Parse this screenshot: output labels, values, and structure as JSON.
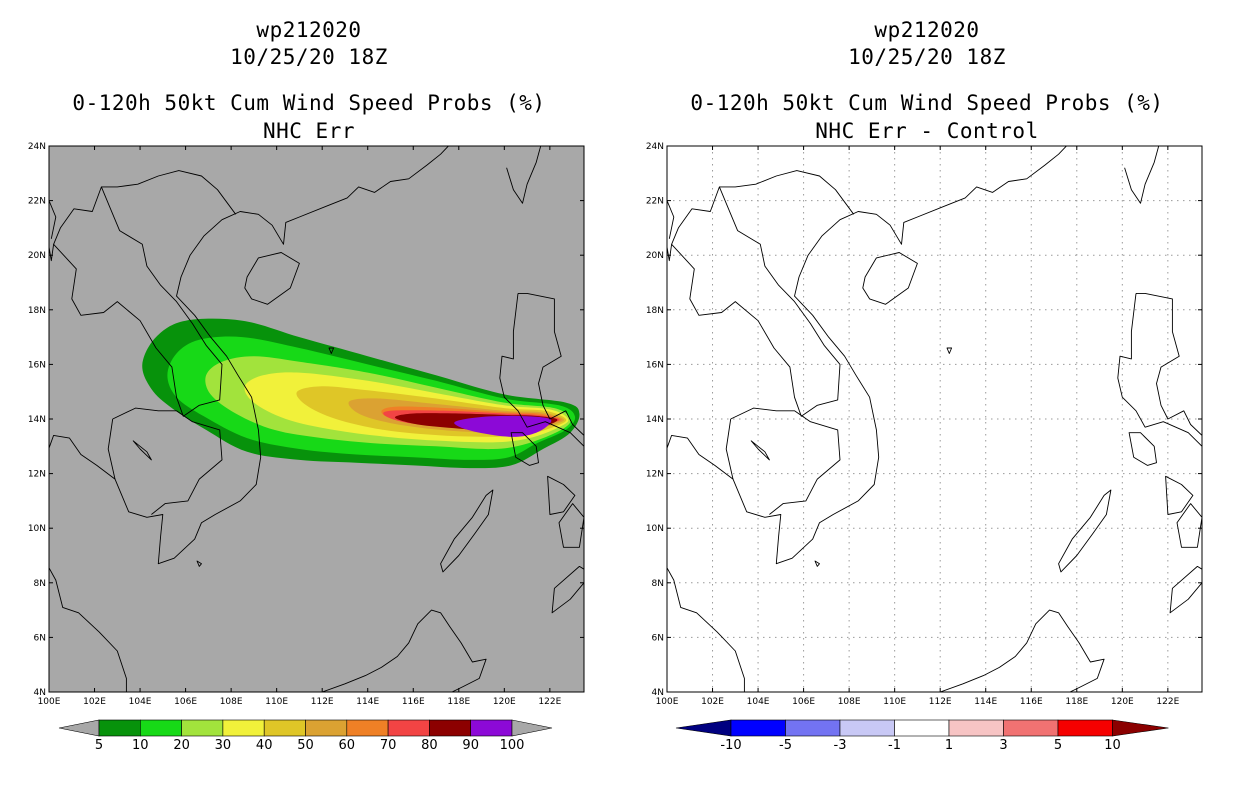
{
  "panels": [
    {
      "storm_id": "wp212020",
      "datetime": "10/25/20 18Z",
      "product": "0-120h 50kt Cum Wind Speed Probs (%)",
      "subtitle": "NHC Err",
      "background": "#a8a8a8",
      "colorbar": {
        "labels": [
          "5",
          "10",
          "20",
          "30",
          "40",
          "50",
          "60",
          "70",
          "80",
          "90",
          "100"
        ],
        "colors": [
          "#a8a8a8",
          "#07920b",
          "#17d917",
          "#a2e33c",
          "#f1f13a",
          "#dfc627",
          "#dba232",
          "#ef8026",
          "#f24444",
          "#8c0000",
          "#8c09d7",
          "#a8a8a8"
        ]
      },
      "probability_swath": {
        "units": "%",
        "levels": [
          5,
          10,
          20,
          30,
          40,
          50,
          60,
          70,
          80,
          90
        ]
      }
    },
    {
      "storm_id": "wp212020",
      "datetime": "10/25/20 18Z",
      "product": "0-120h 50kt Cum Wind Speed Probs (%)",
      "subtitle": "NHC Err - Control",
      "background": "#ffffff",
      "colorbar": {
        "labels": [
          "-10",
          "-5",
          "-3",
          "-1",
          "1",
          "3",
          "5",
          "10"
        ],
        "colors": [
          "#000080",
          "#0000ff",
          "#7373f2",
          "#c8c8f5",
          "#ffffff",
          "#f7c4c4",
          "#f17272",
          "#f50000",
          "#8b0000"
        ]
      }
    }
  ],
  "axes": {
    "lon_labels": [
      "100E",
      "102E",
      "104E",
      "106E",
      "108E",
      "110E",
      "112E",
      "114E",
      "116E",
      "118E",
      "120E",
      "122E"
    ],
    "lat_labels": [
      "4N",
      "6N",
      "8N",
      "10N",
      "12N",
      "14N",
      "16N",
      "18N",
      "20N",
      "22N",
      "24N"
    ],
    "lon_range": [
      100,
      123.5
    ],
    "lat_range": [
      4,
      24
    ]
  }
}
